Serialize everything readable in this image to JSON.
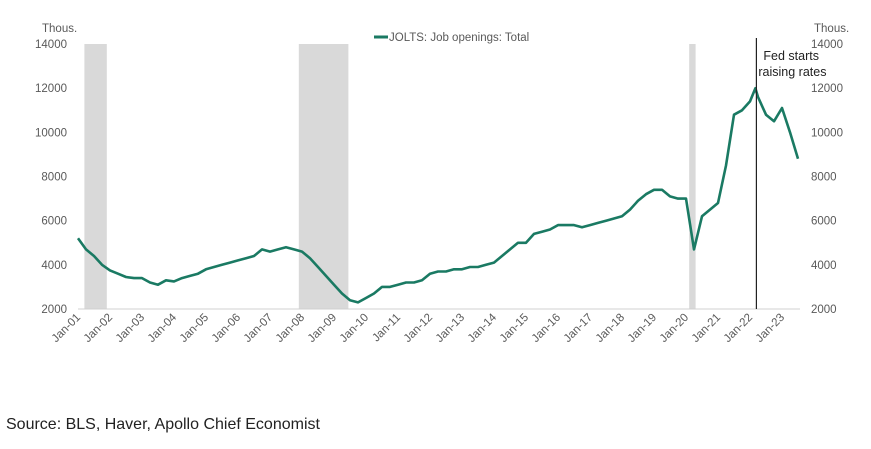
{
  "chart_data": {
    "type": "line",
    "title": "",
    "legend": {
      "label": "JOLTS: Job openings: Total",
      "placement": "top-center"
    },
    "ylabel_left": "Thous.",
    "ylabel_right": "Thous.",
    "ylim": [
      2000,
      14000
    ],
    "yticks": [
      2000,
      4000,
      6000,
      8000,
      10000,
      12000,
      14000
    ],
    "xlim": [
      2001.0,
      2023.5
    ],
    "xticks": [
      "Jan-01",
      "Jan-02",
      "Jan-03",
      "Jan-04",
      "Jan-05",
      "Jan-06",
      "Jan-07",
      "Jan-08",
      "Jan-09",
      "Jan-10",
      "Jan-11",
      "Jan-12",
      "Jan-13",
      "Jan-14",
      "Jan-15",
      "Jan-16",
      "Jan-17",
      "Jan-18",
      "Jan-19",
      "Jan-20",
      "Jan-21",
      "Jan-22",
      "Jan-23"
    ],
    "recessions": [
      [
        2001.2,
        2001.9
      ],
      [
        2007.9,
        2009.45
      ],
      [
        2020.1,
        2020.3
      ]
    ],
    "annotation": {
      "x": 2022.2,
      "line1": "Fed starts",
      "line2": "raising rates"
    },
    "series": [
      {
        "name": "JOLTS: Job openings: Total",
        "color": "#1a7a63",
        "x": [
          2001.0,
          2001.25,
          2001.5,
          2001.75,
          2002.0,
          2002.25,
          2002.5,
          2002.75,
          2003.0,
          2003.25,
          2003.5,
          2003.75,
          2004.0,
          2004.25,
          2004.5,
          2004.75,
          2005.0,
          2005.25,
          2005.5,
          2005.75,
          2006.0,
          2006.25,
          2006.5,
          2006.75,
          2007.0,
          2007.25,
          2007.5,
          2007.75,
          2008.0,
          2008.25,
          2008.5,
          2008.75,
          2009.0,
          2009.25,
          2009.5,
          2009.75,
          2010.0,
          2010.25,
          2010.5,
          2010.75,
          2011.0,
          2011.25,
          2011.5,
          2011.75,
          2012.0,
          2012.25,
          2012.5,
          2012.75,
          2013.0,
          2013.25,
          2013.5,
          2013.75,
          2014.0,
          2014.25,
          2014.5,
          2014.75,
          2015.0,
          2015.25,
          2015.5,
          2015.75,
          2016.0,
          2016.25,
          2016.5,
          2016.75,
          2017.0,
          2017.25,
          2017.5,
          2017.75,
          2018.0,
          2018.25,
          2018.5,
          2018.75,
          2019.0,
          2019.25,
          2019.5,
          2019.75,
          2020.0,
          2020.25,
          2020.5,
          2020.75,
          2021.0,
          2021.25,
          2021.5,
          2021.75,
          2022.0,
          2022.17,
          2022.25,
          2022.5,
          2022.75,
          2023.0,
          2023.25,
          2023.5
        ],
        "values": [
          5200,
          4700,
          4400,
          4000,
          3750,
          3600,
          3450,
          3400,
          3400,
          3200,
          3100,
          3300,
          3250,
          3400,
          3500,
          3600,
          3800,
          3900,
          4000,
          4100,
          4200,
          4300,
          4400,
          4700,
          4600,
          4700,
          4800,
          4700,
          4600,
          4300,
          3900,
          3500,
          3100,
          2700,
          2400,
          2300,
          2500,
          2700,
          3000,
          3000,
          3100,
          3200,
          3200,
          3300,
          3600,
          3700,
          3700,
          3800,
          3800,
          3900,
          3900,
          4000,
          4100,
          4400,
          4700,
          5000,
          5000,
          5400,
          5500,
          5600,
          5800,
          5800,
          5800,
          5700,
          5800,
          5900,
          6000,
          6100,
          6200,
          6500,
          6900,
          7200,
          7400,
          7400,
          7100,
          7000,
          7000,
          4700,
          6200,
          6500,
          6800,
          8500,
          10800,
          11000,
          11400,
          12000,
          11600,
          10800,
          10500,
          11100,
          10000,
          8800
        ]
      }
    ]
  },
  "source": "Source: BLS, Haver, Apollo Chief Economist"
}
